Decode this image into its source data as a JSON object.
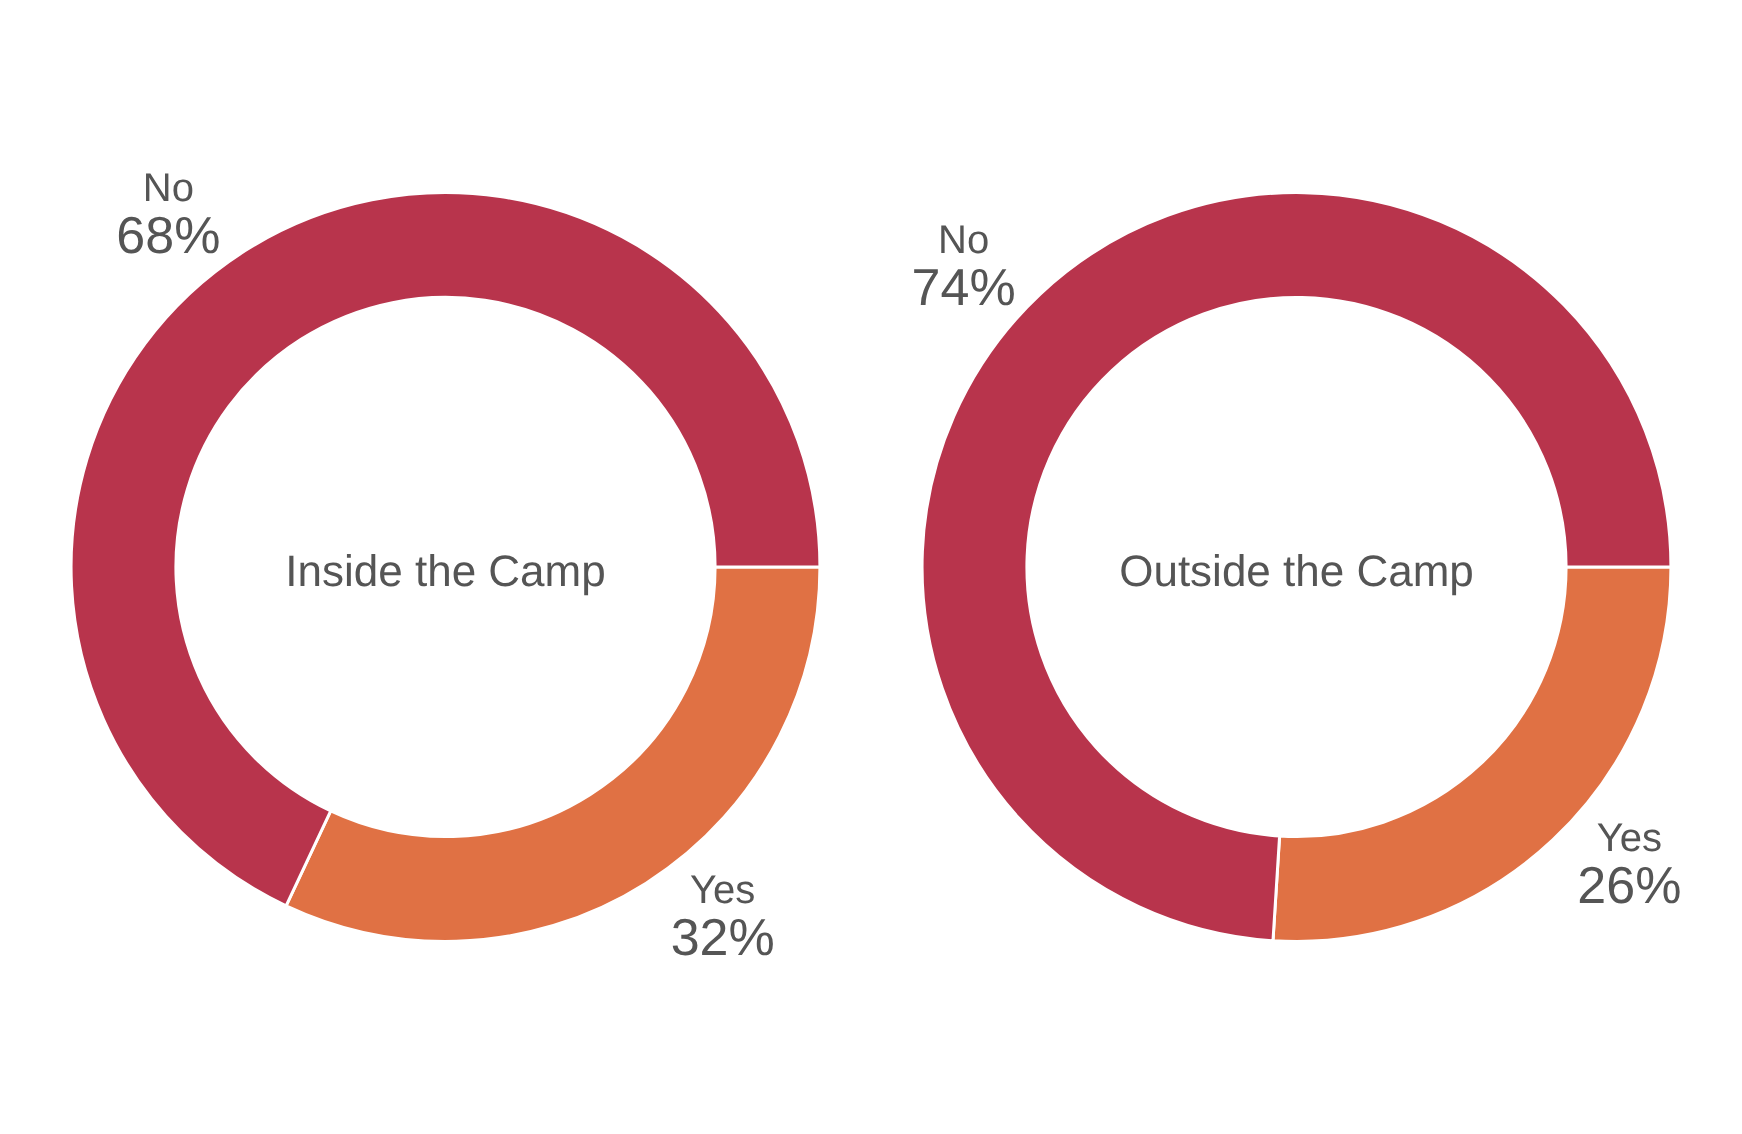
{
  "chart_data": [
    {
      "type": "donut",
      "title": "Inside the Camp",
      "categories": [
        "Yes",
        "No"
      ],
      "values": [
        32,
        68
      ],
      "colors": [
        "#e07144",
        "#b8344c"
      ],
      "value_labels": [
        "32%",
        "68%"
      ],
      "legend": false
    },
    {
      "type": "donut",
      "title": "Outside the Camp",
      "categories": [
        "Yes",
        "No"
      ],
      "values": [
        26,
        74
      ],
      "colors": [
        "#e07144",
        "#b8344c"
      ],
      "value_labels": [
        "26%",
        "74%"
      ],
      "legend": false
    }
  ]
}
